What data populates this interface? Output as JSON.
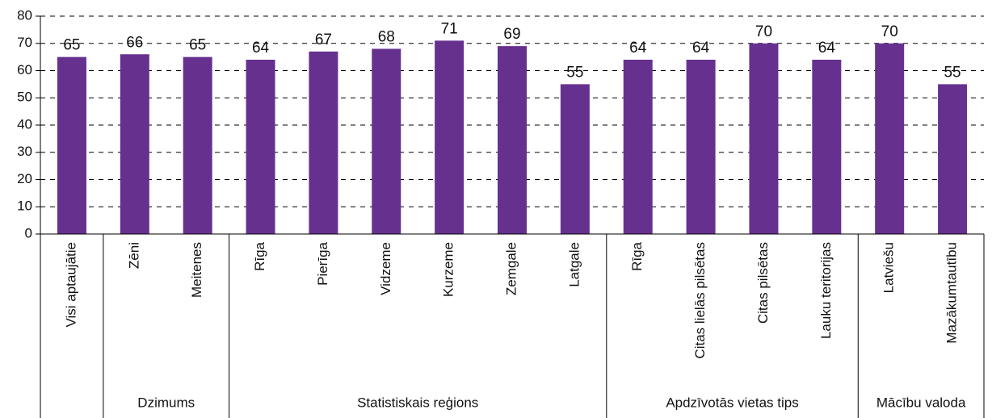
{
  "chart_data": {
    "type": "bar",
    "color": "#66308f",
    "grid": true,
    "ylim": [
      0,
      80
    ],
    "yticks": [
      0,
      10,
      20,
      30,
      40,
      50,
      60,
      70,
      80
    ],
    "groups": [
      {
        "name": null,
        "categories": [
          "Visi aptaujātie"
        ],
        "values": [
          65
        ]
      },
      {
        "name": "Dzimums",
        "categories": [
          "Zēni",
          "Meitenes"
        ],
        "values": [
          66,
          65
        ]
      },
      {
        "name": "Statistiskais reģions",
        "categories": [
          "Rīga",
          "Pierīga",
          "Vidzeme",
          "Kurzeme",
          "Zemgale",
          "Latgale"
        ],
        "values": [
          64,
          67,
          68,
          71,
          69,
          55
        ]
      },
      {
        "name": "Apdzīvotās vietas tips",
        "categories": [
          "Rīga",
          "Citas lielās pilsētas",
          "Citas pilsētas",
          "Lauku teritorijas"
        ],
        "values": [
          64,
          64,
          70,
          64
        ]
      },
      {
        "name": "Mācību valoda",
        "categories": [
          "Latviešu",
          "Mazākumtautību"
        ],
        "values": [
          70,
          55
        ]
      }
    ]
  }
}
